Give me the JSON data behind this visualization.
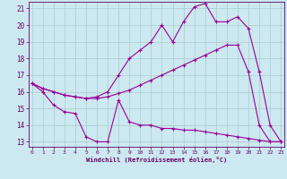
{
  "xlabel": "Windchill (Refroidissement éolien,°C)",
  "background_color": "#cce8f0",
  "line_color": "#990099",
  "spine_color": "#660066",
  "grid_color": "#aacccc",
  "xlim_min": -0.3,
  "xlim_max": 23.3,
  "ylim_min": 12.7,
  "ylim_max": 21.4,
  "yticks": [
    13,
    14,
    15,
    16,
    17,
    18,
    19,
    20,
    21
  ],
  "xticks": [
    0,
    1,
    2,
    3,
    4,
    5,
    6,
    7,
    8,
    9,
    10,
    11,
    12,
    13,
    14,
    15,
    16,
    17,
    18,
    19,
    20,
    21,
    22,
    23
  ],
  "line1_x": [
    0,
    1,
    2,
    3,
    4,
    5,
    6,
    7,
    8,
    9,
    10,
    11,
    12,
    13,
    14,
    15,
    16,
    17,
    18,
    19,
    20,
    21,
    22,
    23
  ],
  "line1_y": [
    16.5,
    16.0,
    15.2,
    14.8,
    14.7,
    13.3,
    13.0,
    13.0,
    15.5,
    14.2,
    14.0,
    14.0,
    13.8,
    13.8,
    13.7,
    13.7,
    13.6,
    13.5,
    13.4,
    13.3,
    13.2,
    13.1,
    13.0,
    13.0
  ],
  "line2_x": [
    0,
    1,
    2,
    3,
    4,
    5,
    6,
    7,
    8,
    9,
    10,
    11,
    12,
    13,
    14,
    15,
    16,
    17,
    18,
    19,
    20,
    21,
    22,
    23
  ],
  "line2_y": [
    16.5,
    16.2,
    16.0,
    15.8,
    15.7,
    15.6,
    15.6,
    15.7,
    15.9,
    16.1,
    16.4,
    16.7,
    17.0,
    17.3,
    17.6,
    17.9,
    18.2,
    18.5,
    18.8,
    18.8,
    17.2,
    14.0,
    13.0,
    13.0
  ],
  "line3_x": [
    0,
    1,
    2,
    3,
    4,
    5,
    6,
    7,
    8,
    9,
    10,
    11,
    12,
    13,
    14,
    15,
    16,
    17,
    18,
    19,
    20,
    21,
    22,
    23
  ],
  "line3_y": [
    16.5,
    16.2,
    16.0,
    15.8,
    15.7,
    15.6,
    15.7,
    16.0,
    17.0,
    18.0,
    18.5,
    19.0,
    20.0,
    19.0,
    20.2,
    21.1,
    21.3,
    20.2,
    20.2,
    20.5,
    19.8,
    17.2,
    14.0,
    13.0
  ]
}
